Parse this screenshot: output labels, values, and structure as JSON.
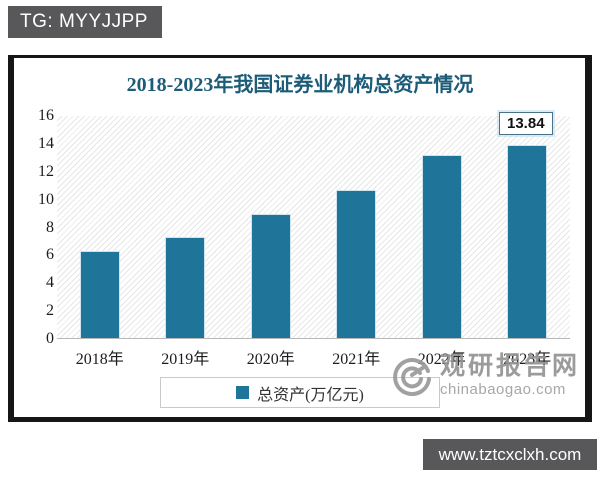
{
  "tag_box": {
    "label": "TG: MYYJJPP"
  },
  "url_box": {
    "label": "www.tztcxclxh.com"
  },
  "watermark": {
    "site_name": "观研报告网",
    "site_domain": "chinabaogao.com"
  },
  "chart_data": {
    "type": "bar",
    "title": "2018-2023年我国证券业机构总资产情况",
    "categories": [
      "2018年",
      "2019年",
      "2020年",
      "2021年",
      "2022年",
      "2023年"
    ],
    "values": [
      6.26,
      7.26,
      8.9,
      10.59,
      13.1,
      13.84
    ],
    "xlabel": "",
    "ylabel": "",
    "ylim": [
      0,
      16
    ],
    "yticks": [
      0,
      2,
      4,
      6,
      8,
      10,
      12,
      14,
      16
    ],
    "grid": false,
    "plot_background": "diagonal-hatch",
    "bar_color": "#1f7499",
    "legend": [
      "总资产(万亿元)"
    ],
    "legend_position": "bottom",
    "data_label": {
      "index": 5,
      "text": "13.84"
    }
  }
}
